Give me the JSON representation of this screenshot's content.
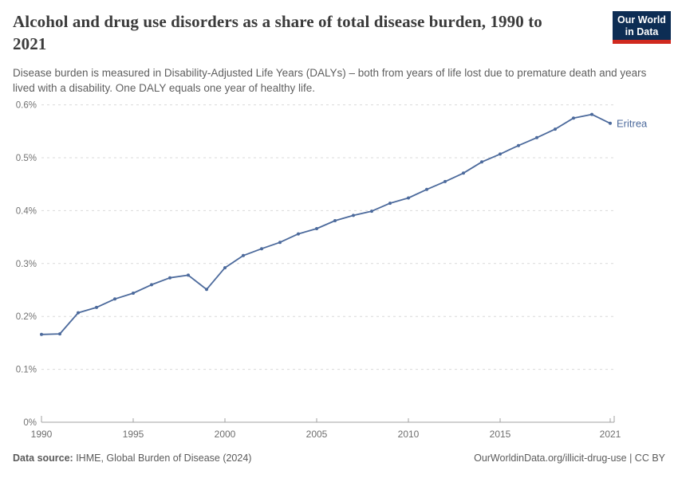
{
  "header": {
    "title": "Alcohol and drug use disorders as a share of total disease burden, 1990 to 2021",
    "subtitle": "Disease burden is measured in Disability-Adjusted Life Years (DALYs) – both from years of life lost due to premature death and years lived with a disability. One DALY equals one year of healthy life."
  },
  "logo": {
    "line1": "Our World",
    "line2": "in Data"
  },
  "footer": {
    "source_label": "Data source:",
    "source_text": " IHME, Global Burden of Disease (2024)",
    "right_text": "OurWorldinData.org/illicit-drug-use | CC BY"
  },
  "colors": {
    "accent": "#4C6A9C",
    "grid": "#d9d9d9",
    "axis": "#a1a1a1",
    "logo_bg": "#0d2d54",
    "logo_red": "#d0291f"
  },
  "chart_data": {
    "type": "line",
    "title": "Alcohol and drug use disorders as a share of total disease burden, 1990 to 2021",
    "unit": "%",
    "grid": "dashed-horizontal",
    "legend_position": "end-of-line-label",
    "xlim": [
      1990,
      2021
    ],
    "ylim": [
      0,
      0.6
    ],
    "x_ticks": [
      {
        "value": 1990,
        "label": "1990"
      },
      {
        "value": 1995,
        "label": "1995"
      },
      {
        "value": 2000,
        "label": "2000"
      },
      {
        "value": 2005,
        "label": "2005"
      },
      {
        "value": 2010,
        "label": "2010"
      },
      {
        "value": 2015,
        "label": "2015"
      },
      {
        "value": 2021,
        "label": "2021"
      }
    ],
    "y_ticks": [
      {
        "value": 0,
        "label": "0%"
      },
      {
        "value": 0.1,
        "label": "0.1%"
      },
      {
        "value": 0.2,
        "label": "0.2%"
      },
      {
        "value": 0.3,
        "label": "0.3%"
      },
      {
        "value": 0.4,
        "label": "0.4%"
      },
      {
        "value": 0.5,
        "label": "0.5%"
      },
      {
        "value": 0.6,
        "label": "0.6%"
      }
    ],
    "series": [
      {
        "name": "Eritrea",
        "color": "#4C6A9C",
        "x": [
          1990,
          1991,
          1992,
          1993,
          1994,
          1995,
          1996,
          1997,
          1998,
          1999,
          2000,
          2001,
          2002,
          2003,
          2004,
          2005,
          2006,
          2007,
          2008,
          2009,
          2010,
          2011,
          2012,
          2013,
          2014,
          2015,
          2016,
          2017,
          2018,
          2019,
          2020,
          2021
        ],
        "values": [
          0.166,
          0.167,
          0.207,
          0.217,
          0.233,
          0.244,
          0.26,
          0.273,
          0.278,
          0.251,
          0.292,
          0.315,
          0.328,
          0.34,
          0.356,
          0.366,
          0.381,
          0.391,
          0.399,
          0.414,
          0.424,
          0.44,
          0.455,
          0.471,
          0.492,
          0.507,
          0.523,
          0.538,
          0.554,
          0.575,
          0.582,
          0.565
        ]
      }
    ]
  }
}
